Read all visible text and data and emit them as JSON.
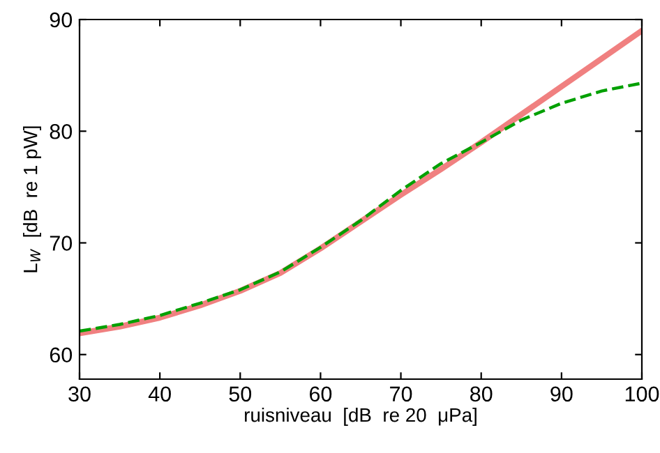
{
  "chart_data": {
    "type": "line",
    "xlabel": "ruisniveau  [dB  re 20  μPa]",
    "ylabel": "L$_{W}$  [dB  re 1 pW]",
    "x": [
      30,
      35,
      40,
      45,
      50,
      55,
      60,
      65,
      70,
      75,
      80,
      85,
      90,
      95,
      100
    ],
    "xlim": [
      30,
      100
    ],
    "xticks": [
      30,
      40,
      50,
      60,
      70,
      80,
      90,
      100
    ],
    "ylim": [
      57.8,
      90
    ],
    "yticks": [
      60,
      70,
      80,
      90
    ],
    "grid": false,
    "legend": false,
    "series": [
      {
        "color": "#f08080",
        "line_style": "solid",
        "values": [
          61.9,
          62.5,
          63.3,
          64.4,
          65.7,
          67.3,
          69.5,
          71.9,
          74.3,
          76.6,
          79.0,
          81.5,
          84.0,
          86.5,
          89.0
        ]
      },
      {
        "color": "#00a000",
        "line_style": "dashed",
        "values": [
          62.1,
          62.7,
          63.5,
          64.6,
          65.8,
          67.4,
          69.6,
          72.0,
          74.7,
          77.1,
          79.0,
          81.0,
          82.5,
          83.6,
          84.3
        ]
      }
    ]
  }
}
